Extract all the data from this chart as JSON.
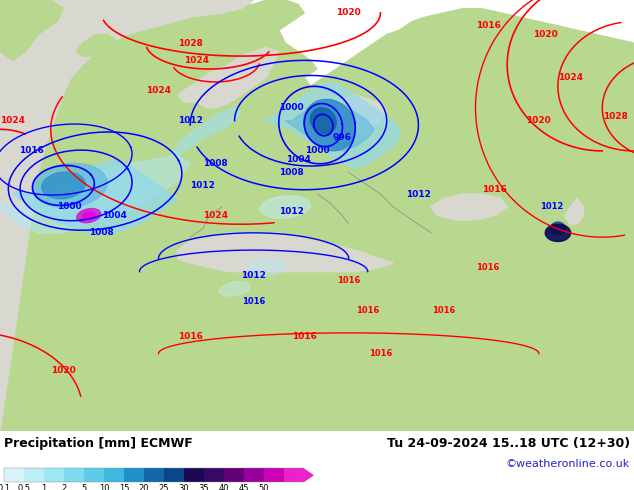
{
  "title_left": "Precipitation [mm] ECMWF",
  "title_right": "Tu 24-09-2024 15..18 UTC (12+30)",
  "credit": "©weatheronline.co.uk",
  "colorbar_labels": [
    "0.1",
    "0.5",
    "1",
    "2",
    "5",
    "10",
    "15",
    "20",
    "25",
    "30",
    "35",
    "40",
    "45",
    "50"
  ],
  "colorbar_colors": [
    "#d8f4f8",
    "#bdeef5",
    "#9de8f2",
    "#7ddcee",
    "#5dcce8",
    "#3db8e0",
    "#2090cc",
    "#1068a8",
    "#084888",
    "#1a0850",
    "#360868",
    "#620078",
    "#9a00a0",
    "#cc00b8",
    "#ee20cc"
  ],
  "sea_color": "#d8d8d0",
  "land_color": "#b8d890",
  "bg_color": "#ffffff",
  "label_fontsize": 9,
  "credit_fontsize": 8,
  "figsize": [
    6.34,
    4.9
  ],
  "dpi": 100
}
